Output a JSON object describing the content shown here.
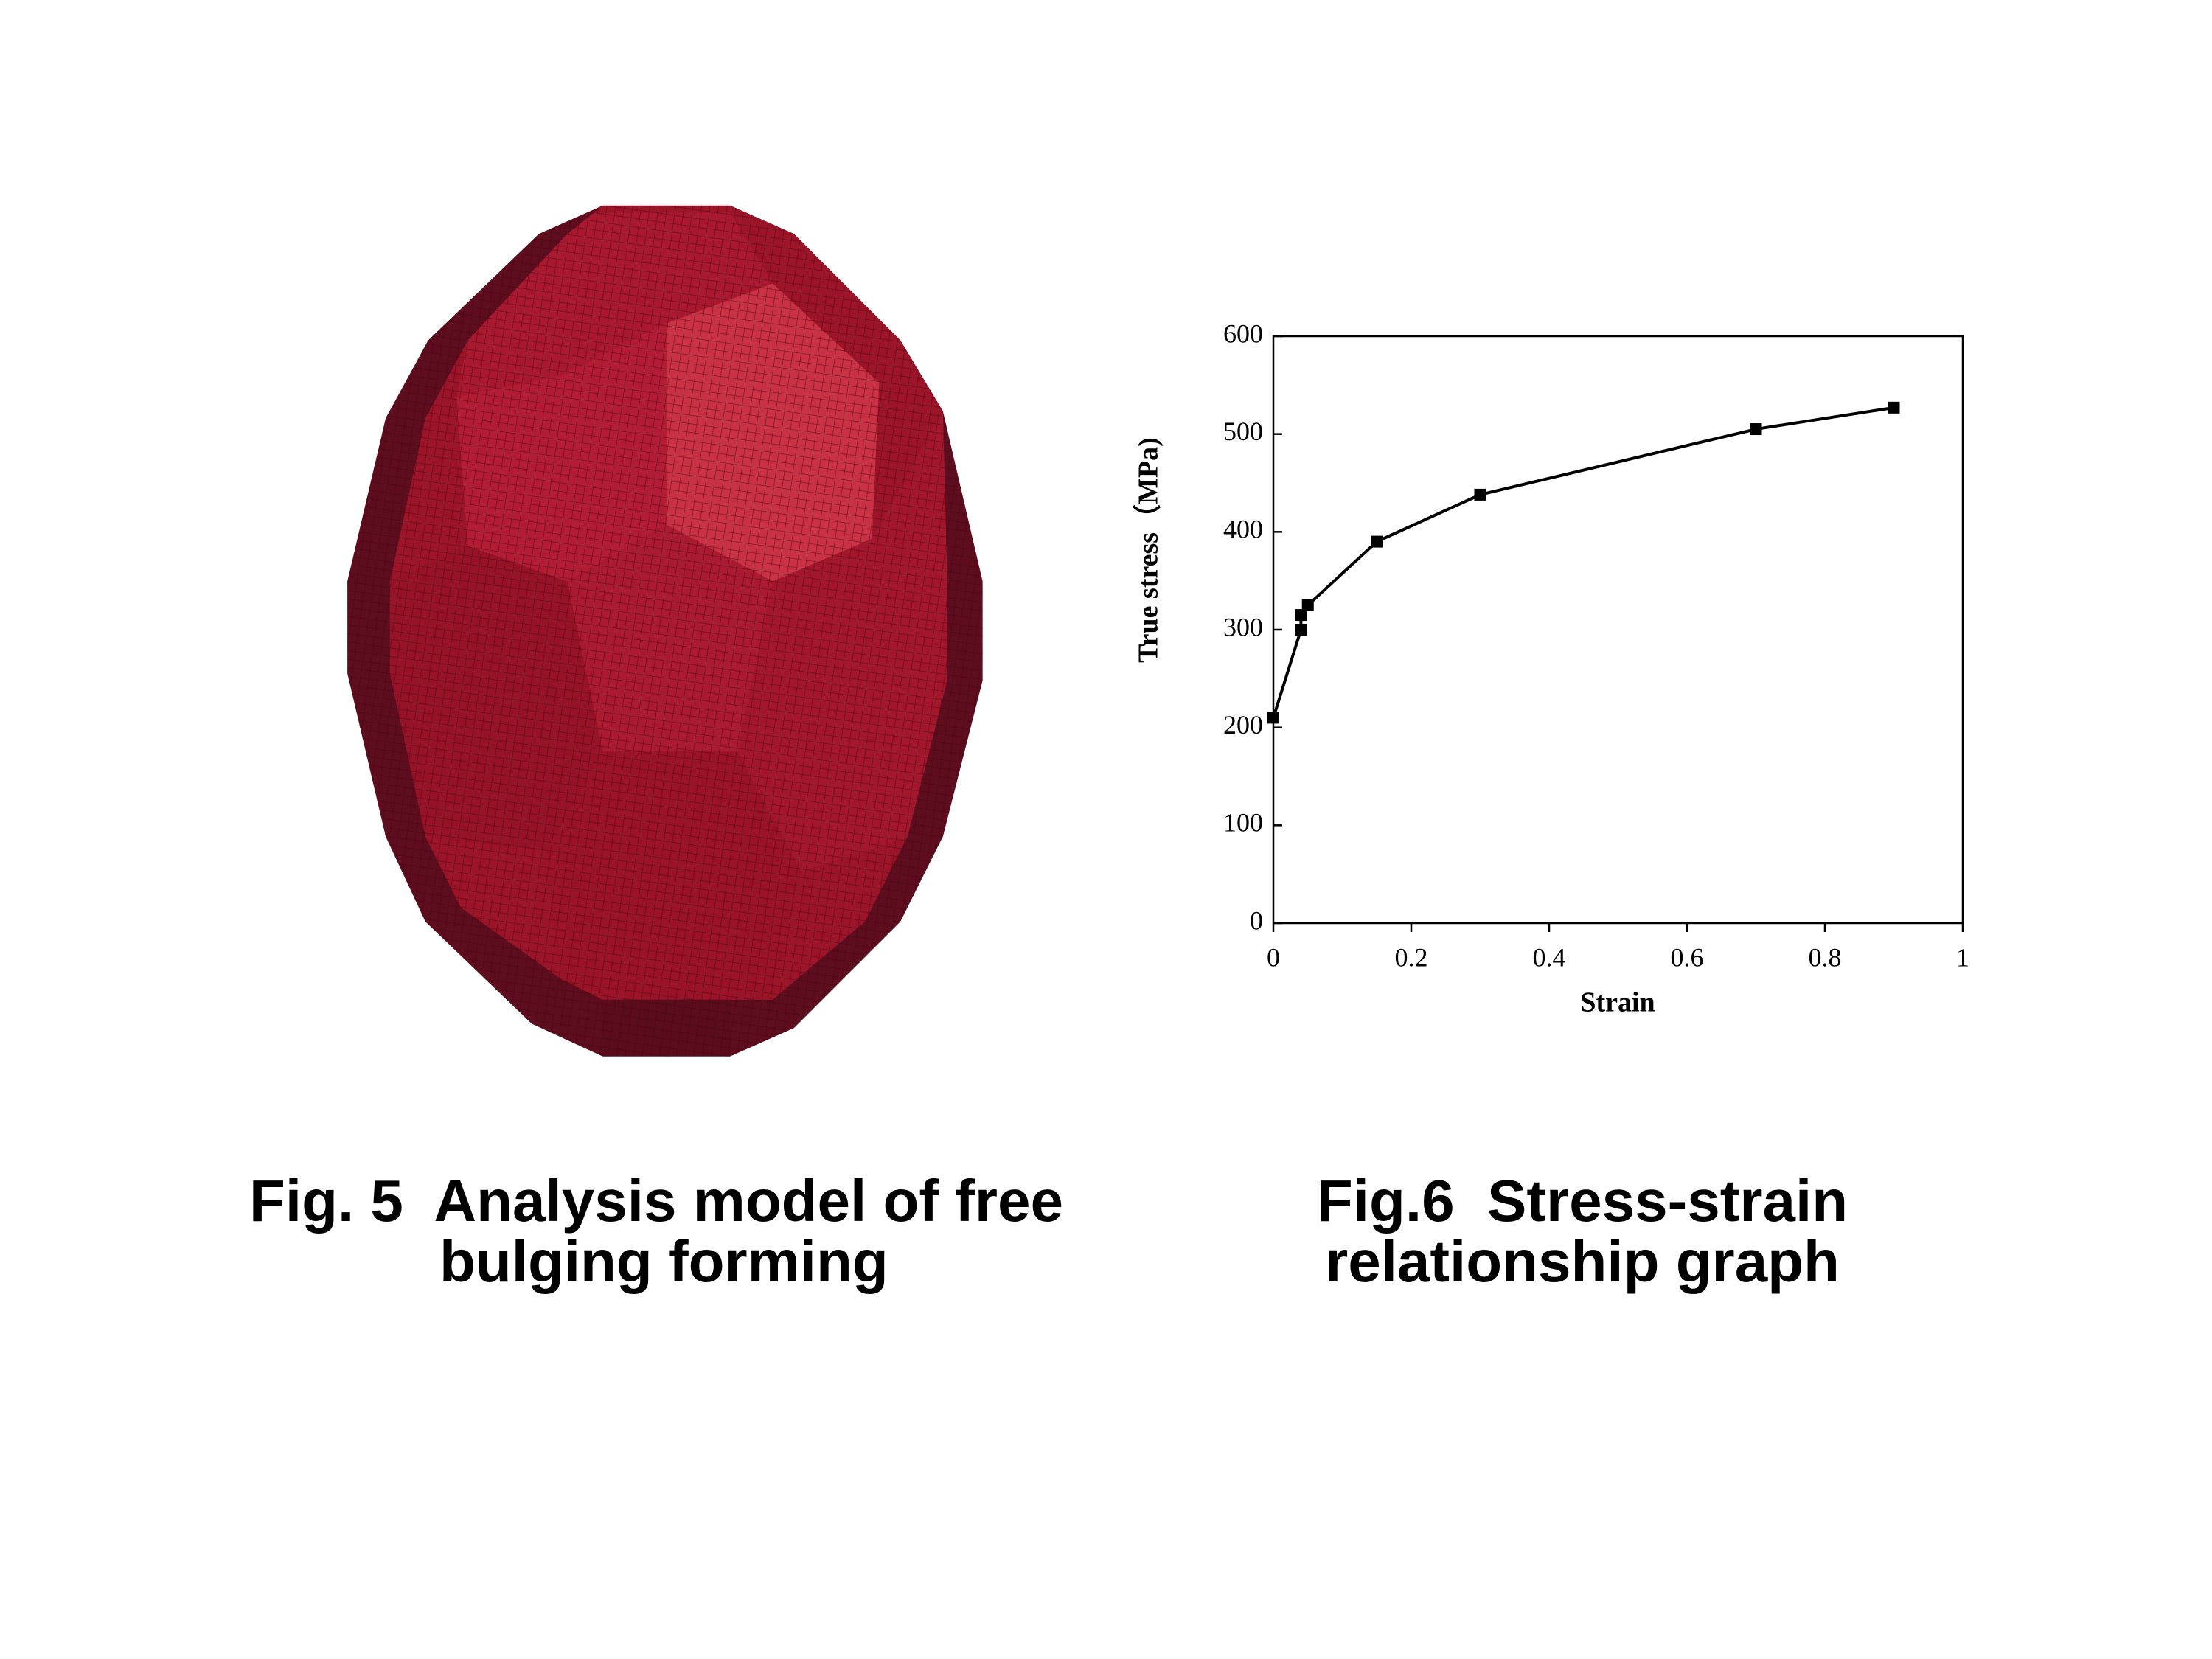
{
  "chart_data": {
    "type": "line",
    "x_label": "Strain",
    "y_label": "True stress（MPa)",
    "x": [
      0,
      0.04,
      0.04,
      0.05,
      0.15,
      0.3,
      0.7,
      0.9
    ],
    "values": [
      210,
      300,
      315,
      325,
      390,
      438,
      505,
      527
    ],
    "color": "#000000",
    "marker": "square",
    "xlim": [
      0,
      1
    ],
    "xticks": [
      0,
      0.2,
      0.4,
      0.6,
      0.8,
      1
    ],
    "ylim": [
      0,
      600
    ],
    "yticks": [
      0,
      100,
      200,
      300,
      400,
      500,
      600
    ]
  },
  "figure5": {
    "caption_lines": [
      "Fig. 5  Analysis model of free",
      "bulging forming"
    ]
  },
  "figure6": {
    "caption_lines": [
      "Fig.6  Stress-strain",
      "relationship graph"
    ]
  }
}
